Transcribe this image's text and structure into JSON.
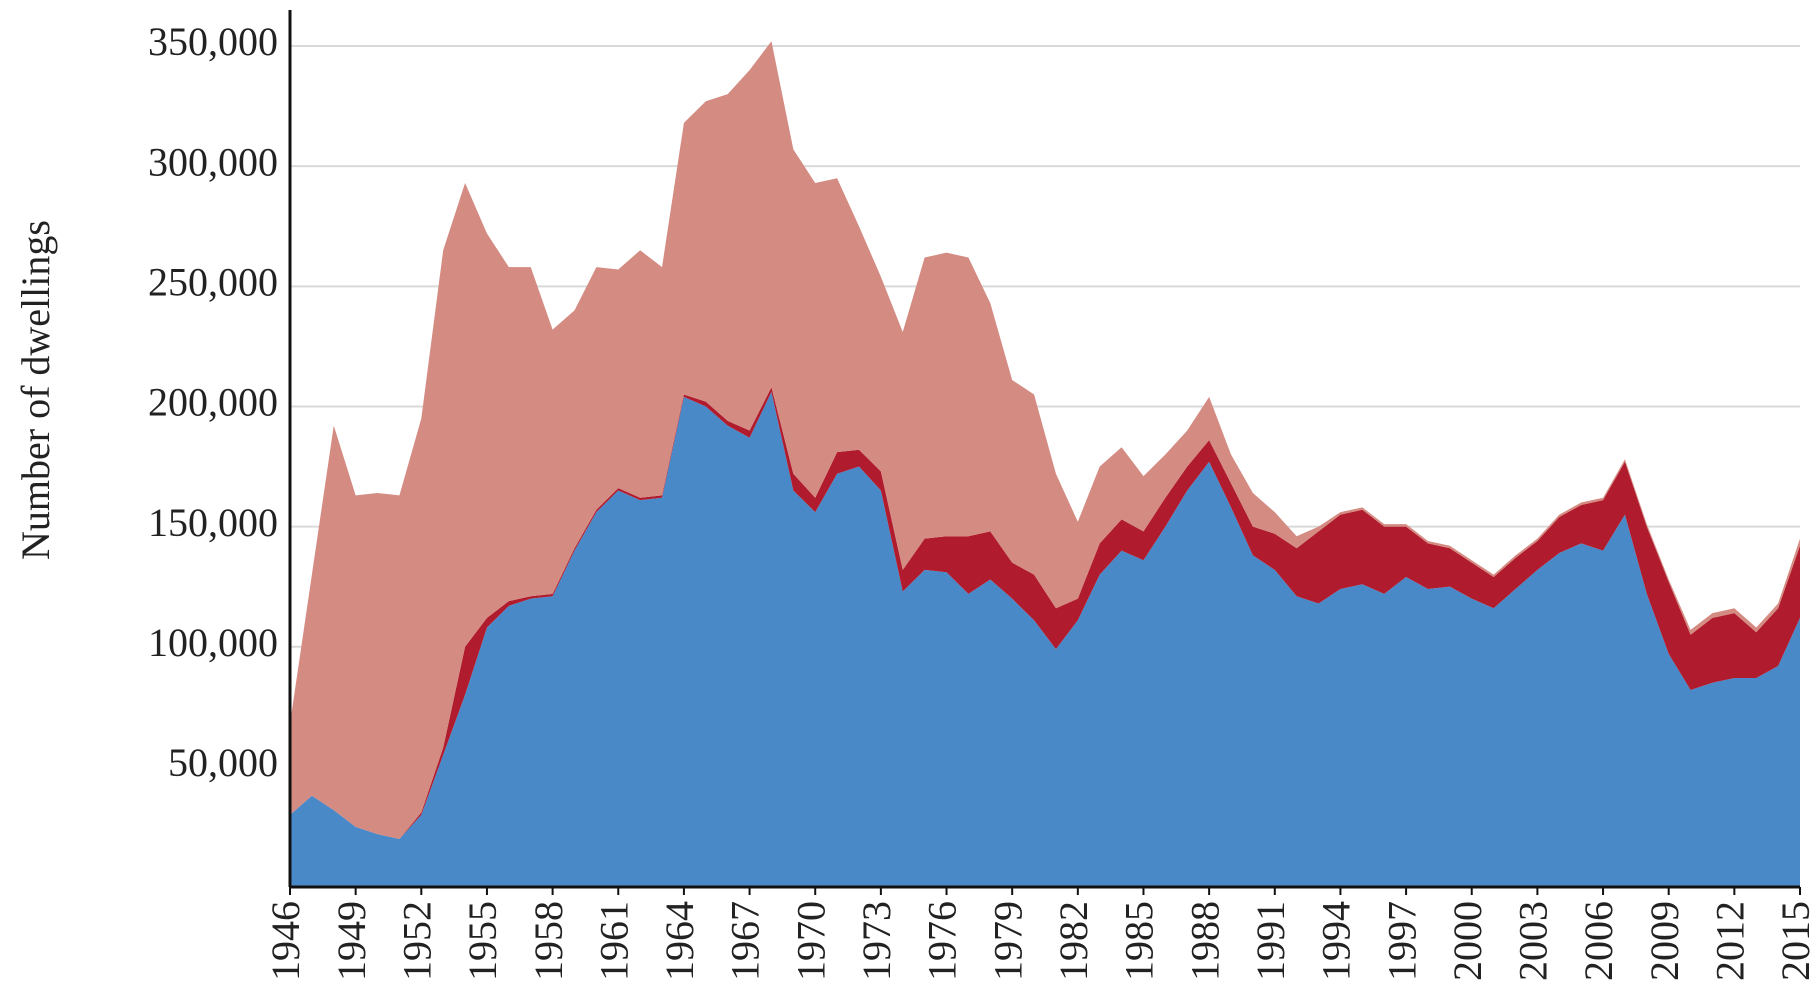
{
  "chart_data": {
    "type": "stacked-area",
    "y_label": "Number of dwellings",
    "x": [
      1946,
      1947,
      1948,
      1949,
      1950,
      1951,
      1952,
      1953,
      1954,
      1955,
      1956,
      1957,
      1958,
      1959,
      1960,
      1961,
      1962,
      1963,
      1964,
      1965,
      1966,
      1967,
      1968,
      1969,
      1970,
      1971,
      1972,
      1973,
      1974,
      1975,
      1976,
      1977,
      1978,
      1979,
      1980,
      1981,
      1982,
      1983,
      1984,
      1985,
      1986,
      1987,
      1988,
      1989,
      1990,
      1991,
      1992,
      1993,
      1994,
      1995,
      1996,
      1997,
      1998,
      1999,
      2000,
      2001,
      2002,
      2003,
      2004,
      2005,
      2006,
      2007,
      2008,
      2009,
      2010,
      2011,
      2012,
      2013,
      2014,
      2015
    ],
    "series": [
      {
        "color": "#4a89c8",
        "values": [
          30000,
          38000,
          32000,
          25000,
          22000,
          20000,
          30000,
          55000,
          80000,
          108000,
          117000,
          120000,
          121000,
          140000,
          156000,
          165000,
          161000,
          162000,
          204000,
          200000,
          192000,
          187000,
          206000,
          165000,
          156000,
          172000,
          175000,
          165000,
          123000,
          132000,
          131000,
          122000,
          128000,
          120000,
          111000,
          99000,
          111000,
          130000,
          140000,
          136000,
          150000,
          165000,
          177000,
          158000,
          138000,
          132000,
          121000,
          118000,
          124000,
          126000,
          122000,
          129000,
          124000,
          125000,
          120000,
          116000,
          124000,
          132000,
          139000,
          143000,
          140000,
          155000,
          122000,
          97000,
          82000,
          85000,
          87000,
          87000,
          92000,
          112000
        ]
      },
      {
        "color": "#b01c2e",
        "values": [
          0,
          0,
          0,
          0,
          0,
          0,
          1000,
          3000,
          20000,
          4000,
          2000,
          1000,
          1000,
          1000,
          1000,
          1000,
          1000,
          1000,
          1000,
          2000,
          2000,
          3000,
          2000,
          7000,
          6000,
          9000,
          7000,
          8000,
          9000,
          13000,
          15000,
          24000,
          20000,
          15000,
          19000,
          17000,
          9000,
          13000,
          13000,
          12000,
          12000,
          10000,
          9000,
          10000,
          12000,
          15000,
          20000,
          30000,
          31000,
          31000,
          28000,
          21000,
          19000,
          16000,
          15000,
          13000,
          13000,
          12000,
          15000,
          16000,
          21000,
          22000,
          28000,
          30000,
          23000,
          27000,
          27000,
          19000,
          24000,
          30000
        ]
      },
      {
        "color": "#d48b82",
        "values": [
          38000,
          92000,
          160000,
          138000,
          142000,
          143000,
          164000,
          207000,
          193000,
          160000,
          139000,
          137000,
          110000,
          99000,
          101000,
          91000,
          103000,
          95000,
          113000,
          125000,
          136000,
          150000,
          144000,
          135000,
          131000,
          114000,
          93000,
          81000,
          99000,
          117000,
          118000,
          116000,
          95000,
          76000,
          75000,
          56000,
          32000,
          32000,
          30000,
          23000,
          18000,
          15000,
          18000,
          12000,
          14000,
          9000,
          5000,
          2000,
          1000,
          1000,
          1000,
          1000,
          1000,
          1000,
          1000,
          1000,
          1000,
          1000,
          1000,
          1000,
          1000,
          1000,
          1000,
          1000,
          2000,
          2000,
          2000,
          2000,
          2000,
          3000
        ]
      }
    ],
    "xlim": [
      1946,
      2015
    ],
    "xticks": [
      1946,
      1949,
      1952,
      1955,
      1958,
      1961,
      1964,
      1967,
      1970,
      1973,
      1976,
      1979,
      1982,
      1985,
      1988,
      1991,
      1994,
      1997,
      2000,
      2003,
      2006,
      2009,
      2012,
      2015
    ],
    "ylim": [
      0,
      365000
    ],
    "yticks": [
      {
        "value": 50000,
        "label": "50,000"
      },
      {
        "value": 100000,
        "label": "100,000"
      },
      {
        "value": 150000,
        "label": "150,000"
      },
      {
        "value": 200000,
        "label": "200,000"
      },
      {
        "value": 250000,
        "label": "250,000"
      },
      {
        "value": 300000,
        "label": "300,000"
      },
      {
        "value": 350000,
        "label": "350,000"
      }
    ],
    "grid": true
  }
}
